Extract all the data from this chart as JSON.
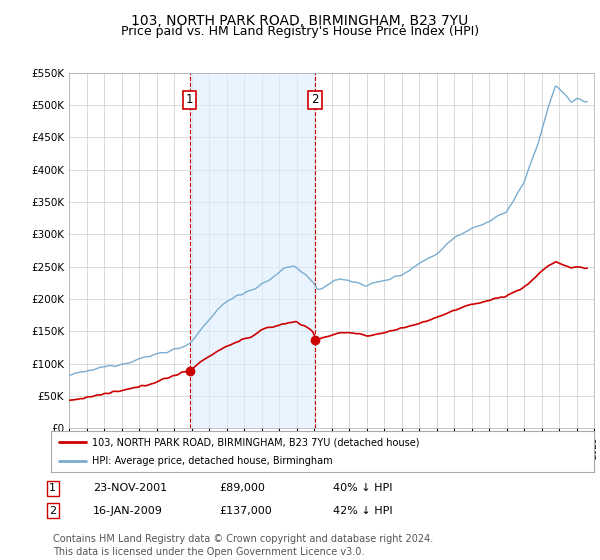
{
  "title": "103, NORTH PARK ROAD, BIRMINGHAM, B23 7YU",
  "subtitle": "Price paid vs. HM Land Registry's House Price Index (HPI)",
  "title_fontsize": 10,
  "subtitle_fontsize": 9,
  "ylim": [
    0,
    550000
  ],
  "yticks": [
    0,
    50000,
    100000,
    150000,
    200000,
    250000,
    300000,
    350000,
    400000,
    450000,
    500000,
    550000
  ],
  "sale1_date_num": 2001.9,
  "sale1_price": 89000,
  "sale2_date_num": 2009.05,
  "sale2_price": 137000,
  "sale1_date_str": "23-NOV-2001",
  "sale1_amount_str": "£89,000",
  "sale1_hpi_str": "40% ↓ HPI",
  "sale2_date_str": "16-JAN-2009",
  "sale2_amount_str": "£137,000",
  "sale2_hpi_str": "42% ↓ HPI",
  "line1_color": "#cc0000",
  "line2_color": "#7aadcf",
  "marker_color": "#cc0000",
  "vline_color": "#cc0000",
  "shade_color": "#ddeeff",
  "background_color": "#ffffff",
  "grid_color": "#cccccc",
  "legend_label1": "103, NORTH PARK ROAD, BIRMINGHAM, B23 7YU (detached house)",
  "legend_label2": "HPI: Average price, detached house, Birmingham",
  "footer": "Contains HM Land Registry data © Crown copyright and database right 2024.\nThis data is licensed under the Open Government Licence v3.0.",
  "footer_fontsize": 7,
  "annotation_box_color": "#cc0000"
}
